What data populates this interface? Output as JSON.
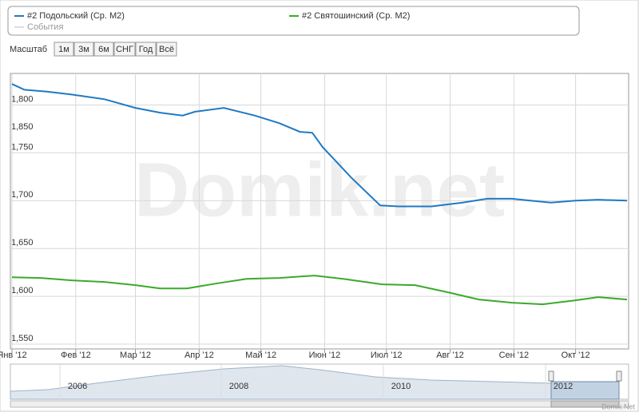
{
  "legend": {
    "events": "События"
  },
  "zoom": {
    "label": "Масштаб",
    "buttons": [
      "1м",
      "3м",
      "6м",
      "СНГ",
      "Год",
      "Всё"
    ]
  },
  "watermark": "Domik.net",
  "credit": "Domik.Net",
  "navigator": {
    "labels": [
      "2006",
      "2008",
      "2010",
      "2012"
    ]
  },
  "chart_data": {
    "type": "line",
    "xlim": [
      0,
      299
    ],
    "xticks": [
      {
        "value": 0,
        "label": "Янв '12"
      },
      {
        "value": 31,
        "label": "Фев '12"
      },
      {
        "value": 60,
        "label": "Мар '12"
      },
      {
        "value": 91,
        "label": "Апр '12"
      },
      {
        "value": 121,
        "label": "Май '12"
      },
      {
        "value": 152,
        "label": "Июн '12"
      },
      {
        "value": 182,
        "label": "Июл '12"
      },
      {
        "value": 213,
        "label": "Авг '12"
      },
      {
        "value": 244,
        "label": "Сен '12"
      },
      {
        "value": 274,
        "label": "Окт '12"
      }
    ],
    "ylim": [
      1545,
      1833
    ],
    "yticks": [
      {
        "value": 1550,
        "label": "1,550"
      },
      {
        "value": 1600,
        "label": "1,600"
      },
      {
        "value": 1650,
        "label": "1,650"
      },
      {
        "value": 1700,
        "label": "1,700"
      },
      {
        "value": 1750,
        "label": "1,750"
      },
      {
        "value": 1800,
        "label": "1,800"
      }
    ],
    "annotations": [
      "1,850"
    ],
    "grid": true,
    "series": [
      {
        "name": "#2 Подольский (Ср. M2)",
        "color": "#1f7ac4",
        "x": [
          0,
          6,
          17,
          29,
          45,
          60,
          72,
          83,
          89,
          103,
          118,
          130,
          140,
          146,
          151,
          165,
          179,
          188,
          204,
          219,
          231,
          243,
          252,
          262,
          274,
          285,
          299
        ],
        "values": [
          1822,
          1816,
          1814,
          1811,
          1806,
          1797,
          1792,
          1789,
          1793,
          1797,
          1789,
          1781,
          1772,
          1771,
          1756,
          1724,
          1695,
          1694,
          1694,
          1698,
          1702,
          1702,
          1700,
          1698,
          1700,
          1701,
          1700
        ]
      },
      {
        "name": "#2 Святошинский (Ср. M2)",
        "color": "#3aaa2a",
        "x": [
          0,
          14,
          29,
          45,
          60,
          72,
          85,
          99,
          114,
          130,
          147,
          161,
          180,
          196,
          212,
          227,
          243,
          258,
          274,
          285,
          299
        ],
        "values": [
          1620,
          1619.2,
          1616.7,
          1615,
          1611.7,
          1608.3,
          1608.3,
          1613.3,
          1618.3,
          1619.2,
          1621.7,
          1618.3,
          1612.5,
          1611.7,
          1604.2,
          1596.7,
          1593.3,
          1591.7,
          1595.8,
          1599.2,
          1596.7
        ]
      }
    ]
  }
}
